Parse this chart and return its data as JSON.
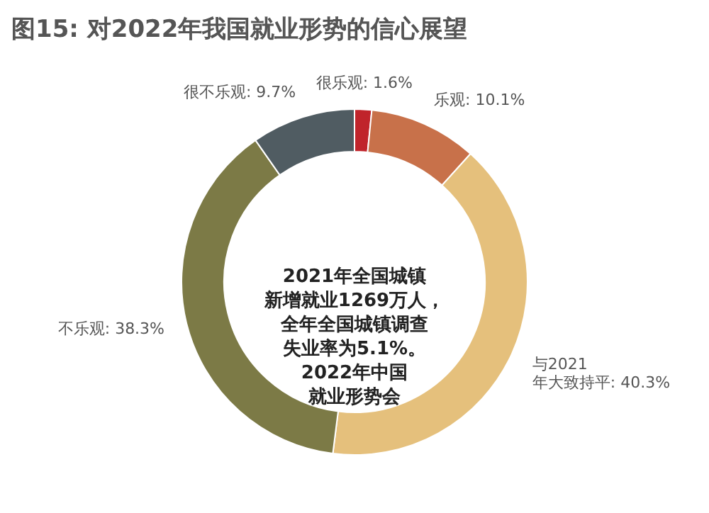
{
  "chart_data": {
    "type": "donut",
    "title": "图15: 对2022年我国就业形势的信心展望",
    "categories": [
      "很乐观",
      "乐观",
      "与2021年大致持平",
      "不乐观",
      "很不乐观"
    ],
    "values": [
      1.6,
      10.1,
      40.3,
      38.3,
      9.7
    ],
    "value_labels": [
      "1.6%",
      "10.1%",
      "40.3%",
      "38.3%",
      "9.7%"
    ],
    "colors": [
      "#c0242b",
      "#c8714a",
      "#e5c07c",
      "#7c7a46",
      "#505c62"
    ],
    "annotations": [
      "2021年全国城镇",
      "新增就业1269万人，",
      "全年全国城镇调查",
      "失业率为5.1%。",
      "2022年中国",
      "就业形势会"
    ]
  }
}
